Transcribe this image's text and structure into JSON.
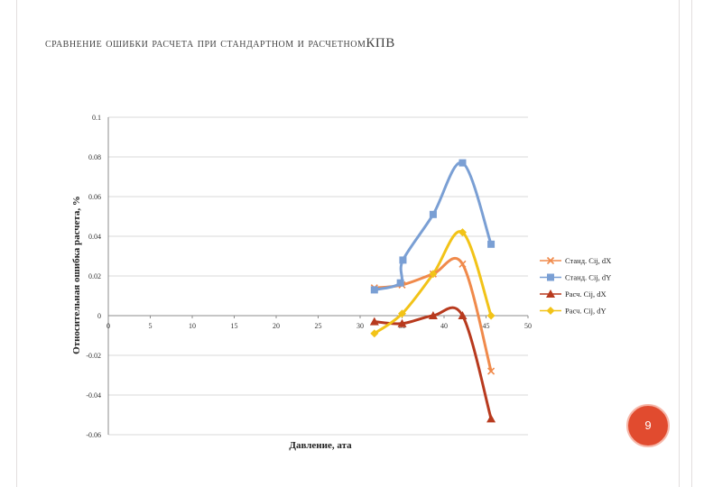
{
  "slide": {
    "title": "Сравнение ошибки расчета при стандартном и расчетном",
    "title_suffix": "КПВ",
    "page_number": "9"
  },
  "colors": {
    "std_dx": "#f08a4b",
    "std_dy": "#7a9fd4",
    "calc_dx": "#b83a1e",
    "calc_dy": "#f2c318",
    "grid": "#d9d9d9",
    "axis": "#8c8c8c",
    "badge": "#e14b2f"
  },
  "chart_data": {
    "type": "line",
    "xlabel": "Давление, ата",
    "ylabel": "Относительная ошибка расчета, %",
    "xlim": [
      0,
      50
    ],
    "ylim": [
      -0.06,
      0.1
    ],
    "x_ticks": [
      "0",
      "5",
      "10",
      "15",
      "20",
      "25",
      "30",
      "35",
      "40",
      "45",
      "50"
    ],
    "y_ticks": [
      "0.1",
      "0.08",
      "0.06",
      "0.04",
      "0.02",
      "0",
      "-0.02",
      "-0.04",
      "-0.06"
    ],
    "grid": true,
    "smooth": true,
    "legend_position": "right",
    "series": [
      {
        "name": "Станд. Cij, dX",
        "marker": "x",
        "color": "#f08a4b",
        "x": [
          31.7,
          35,
          38.7,
          42.2,
          45.6
        ],
        "y": [
          0.014,
          0.0155,
          0.021,
          0.026,
          -0.028
        ]
      },
      {
        "name": "Станд. Cij, dY",
        "marker": "square",
        "color": "#7a9fd4",
        "x": [
          31.7,
          34.8,
          35.1,
          38.7,
          42.2,
          45.6
        ],
        "y": [
          0.013,
          0.0165,
          0.028,
          0.051,
          0.077,
          0.036
        ]
      },
      {
        "name": "Расч. Cij, dX",
        "marker": "triangle",
        "color": "#b83a1e",
        "x": [
          31.7,
          35,
          38.7,
          42.2,
          45.6
        ],
        "y": [
          -0.003,
          -0.004,
          0.0,
          0.0,
          -0.052
        ]
      },
      {
        "name": "Расч. Cij, dY",
        "marker": "diamond",
        "color": "#f2c318",
        "x": [
          31.7,
          35,
          38.7,
          42.2,
          45.6
        ],
        "y": [
          -0.009,
          0.001,
          0.021,
          0.042,
          0.0
        ]
      }
    ]
  }
}
